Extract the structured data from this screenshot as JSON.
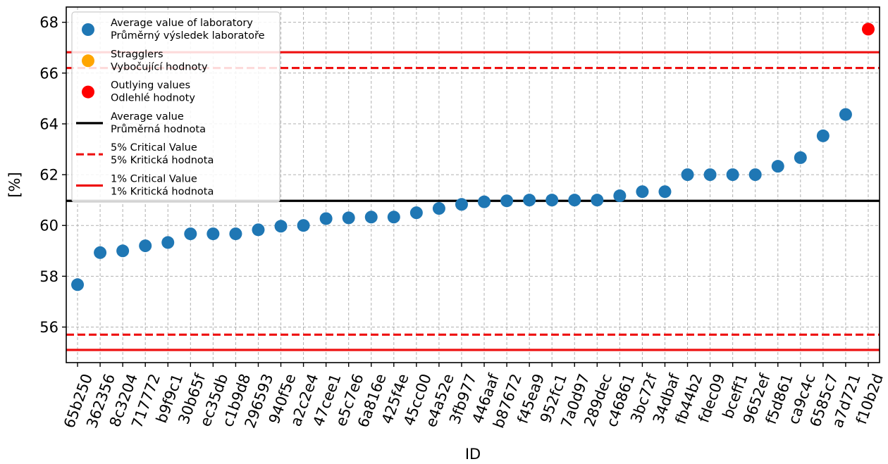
{
  "chart_data": {
    "type": "scatter",
    "xlabel": "ID",
    "ylabel": "[%]",
    "ylim": [
      54.6,
      68.6
    ],
    "yticks": [
      56,
      58,
      60,
      62,
      64,
      66,
      68
    ],
    "grid": true,
    "legend_placement": "upper-left",
    "categories": [
      "65b250",
      "362356",
      "8c3204",
      "717772",
      "b9f9c1",
      "30b65f",
      "ec35db",
      "c1b9d8",
      "296593",
      "940f5e",
      "a2c2e4",
      "47cee1",
      "e5c7e6",
      "6a816e",
      "425f4e",
      "45cc00",
      "e4a52e",
      "3fb977",
      "446aaf",
      "b87672",
      "f45ea9",
      "952fc1",
      "7a0d97",
      "289dec",
      "c46861",
      "3bc72f",
      "34dbaf",
      "fb44b2",
      "fdec09",
      "bceff1",
      "9652ef",
      "f5d861",
      "ca9c4c",
      "6585c7",
      "a7d721",
      "f10b2d"
    ],
    "series": [
      {
        "name": "Average value of laboratory\nPrůměrný výsledek laboratoře",
        "color": "#1f77b4",
        "points": [
          {
            "x": "65b250",
            "y": 57.67
          },
          {
            "x": "362356",
            "y": 58.93
          },
          {
            "x": "8c3204",
            "y": 59.0
          },
          {
            "x": "717772",
            "y": 59.2
          },
          {
            "x": "b9f9c1",
            "y": 59.33
          },
          {
            "x": "30b65f",
            "y": 59.67
          },
          {
            "x": "ec35db",
            "y": 59.67
          },
          {
            "x": "c1b9d8",
            "y": 59.67
          },
          {
            "x": "296593",
            "y": 59.83
          },
          {
            "x": "940f5e",
            "y": 59.97
          },
          {
            "x": "a2c2e4",
            "y": 60.0
          },
          {
            "x": "47cee1",
            "y": 60.27
          },
          {
            "x": "e5c7e6",
            "y": 60.3
          },
          {
            "x": "6a816e",
            "y": 60.33
          },
          {
            "x": "425f4e",
            "y": 60.33
          },
          {
            "x": "45cc00",
            "y": 60.5
          },
          {
            "x": "e4a52e",
            "y": 60.67
          },
          {
            "x": "3fb977",
            "y": 60.83
          },
          {
            "x": "446aaf",
            "y": 60.93
          },
          {
            "x": "b87672",
            "y": 60.97
          },
          {
            "x": "f45ea9",
            "y": 61.0
          },
          {
            "x": "952fc1",
            "y": 61.0
          },
          {
            "x": "7a0d97",
            "y": 61.0
          },
          {
            "x": "289dec",
            "y": 61.0
          },
          {
            "x": "c46861",
            "y": 61.17
          },
          {
            "x": "3bc72f",
            "y": 61.33
          },
          {
            "x": "34dbaf",
            "y": 61.33
          },
          {
            "x": "fb44b2",
            "y": 62.0
          },
          {
            "x": "fdec09",
            "y": 62.0
          },
          {
            "x": "bceff1",
            "y": 62.0
          },
          {
            "x": "9652ef",
            "y": 62.0
          },
          {
            "x": "f5d861",
            "y": 62.33
          },
          {
            "x": "ca9c4c",
            "y": 62.67
          },
          {
            "x": "6585c7",
            "y": 63.53
          },
          {
            "x": "a7d721",
            "y": 64.37
          }
        ]
      },
      {
        "name": "Stragglers\nVybočující hodnoty",
        "color": "#ffa500",
        "points": []
      },
      {
        "name": "Outlying values\nOdlehlé hodnoty",
        "color": "#ff0000",
        "points": [
          {
            "x": "f10b2d",
            "y": 67.73
          }
        ]
      }
    ],
    "hlines": [
      {
        "name": "Average value\nPrůměrná hodnota",
        "y": 60.97,
        "color": "#000000",
        "style": "solid"
      },
      {
        "name": "5% Critical Value\n5% Kritická hodnota",
        "y": 66.2,
        "color": "#ee1111",
        "style": "dashed"
      },
      {
        "name": "5% Critical Value\n5% Kritická hodnota",
        "y": 55.7,
        "color": "#ee1111",
        "style": "dashed"
      },
      {
        "name": "1% Critical Value\n1% Kritická hodnota",
        "y": 66.82,
        "color": "#ee1111",
        "style": "solid"
      },
      {
        "name": "1% Critical Value\n1% Kritická hodnota",
        "y": 55.1,
        "color": "#ee1111",
        "style": "solid"
      }
    ],
    "legend": [
      {
        "label": "Average value of laboratory\nPrůměrný výsledek laboratoře",
        "marker": "dot",
        "color": "#1f77b4"
      },
      {
        "label": "Stragglers\nVybočující hodnoty",
        "marker": "dot",
        "color": "#ffa500"
      },
      {
        "label": "Outlying values\nOdlehlé hodnoty",
        "marker": "dot",
        "color": "#ff0000"
      },
      {
        "label": "Average value\nPrůměrná hodnota",
        "marker": "solid-line",
        "color": "#000000"
      },
      {
        "label": "5% Critical Value\n5% Kritická hodnota",
        "marker": "dashed-line",
        "color": "#ee1111"
      },
      {
        "label": "1% Critical Value\n1% Kritická hodnota",
        "marker": "solid-line",
        "color": "#ee1111"
      }
    ]
  }
}
